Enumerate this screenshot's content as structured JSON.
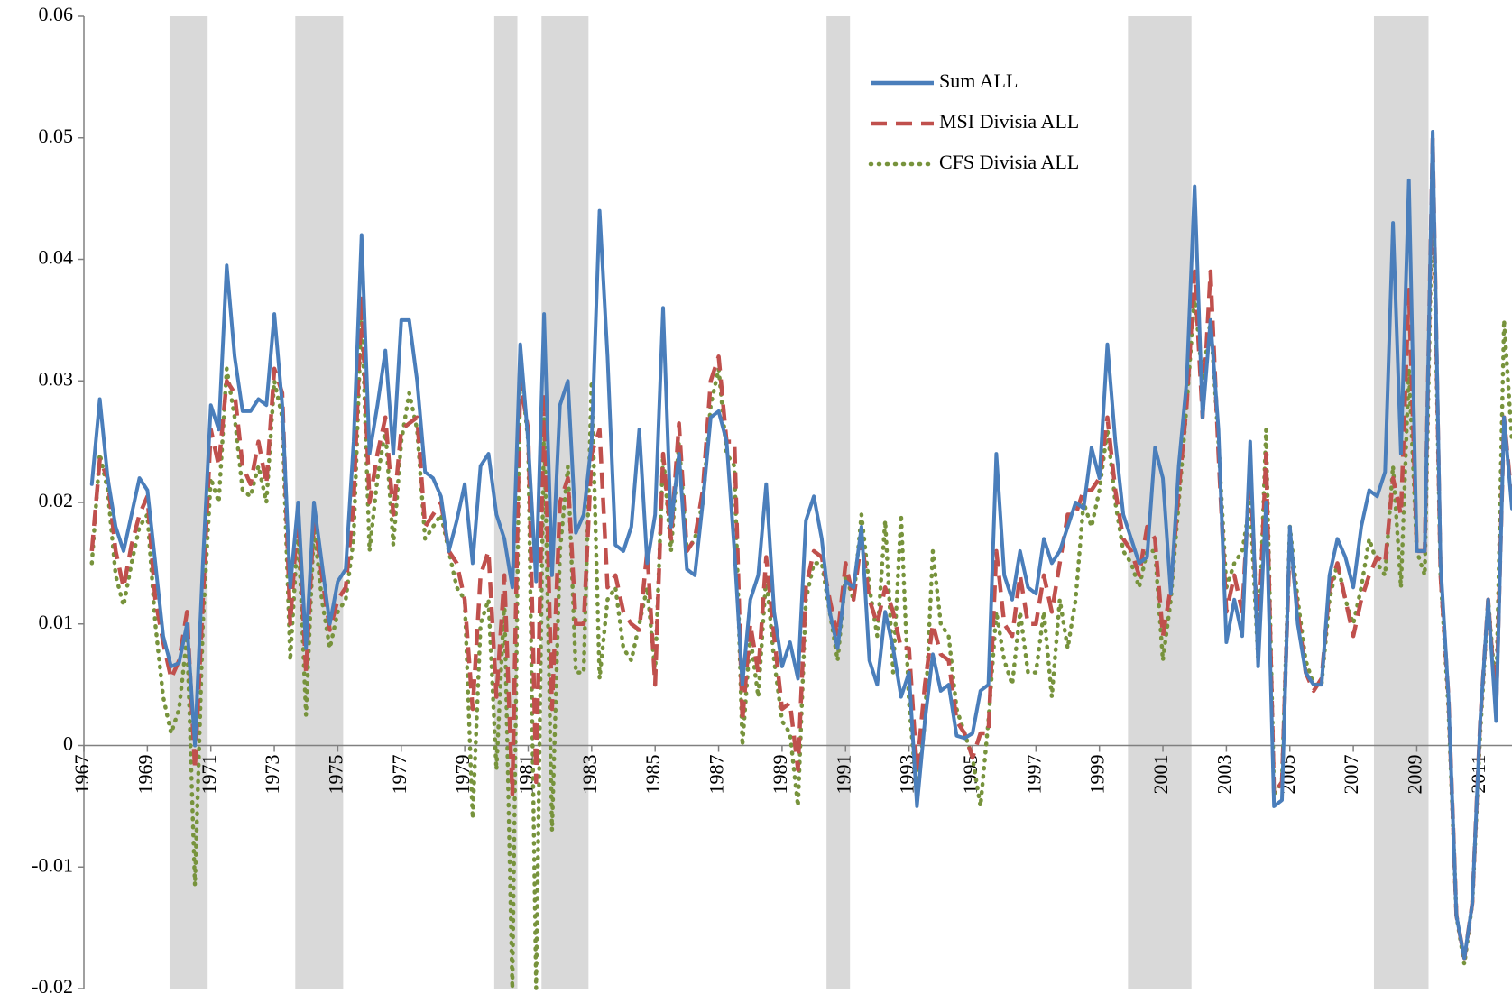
{
  "chart_data": {
    "type": "line",
    "x": [
      1967.25,
      1967.5,
      1967.75,
      1968,
      1968.25,
      1968.5,
      1968.75,
      1969,
      1969.25,
      1969.5,
      1969.75,
      1970,
      1970.25,
      1970.5,
      1970.75,
      1971,
      1971.25,
      1971.5,
      1971.75,
      1972,
      1972.25,
      1972.5,
      1972.75,
      1973,
      1973.25,
      1973.5,
      1973.75,
      1974,
      1974.25,
      1974.5,
      1974.75,
      1975,
      1975.25,
      1975.5,
      1975.75,
      1976,
      1976.25,
      1976.5,
      1976.75,
      1977,
      1977.25,
      1977.5,
      1977.75,
      1978,
      1978.25,
      1978.5,
      1978.75,
      1979,
      1979.25,
      1979.5,
      1979.75,
      1980,
      1980.25,
      1980.5,
      1980.75,
      1981,
      1981.25,
      1981.5,
      1981.75,
      1982,
      1982.25,
      1982.5,
      1982.75,
      1983,
      1983.25,
      1983.5,
      1983.75,
      1984,
      1984.25,
      1984.5,
      1984.75,
      1985,
      1985.25,
      1985.5,
      1985.75,
      1986,
      1986.25,
      1986.5,
      1986.75,
      1987,
      1987.25,
      1987.5,
      1987.75,
      1988,
      1988.25,
      1988.5,
      1988.75,
      1989,
      1989.25,
      1989.5,
      1989.75,
      1990,
      1990.25,
      1990.5,
      1990.75,
      1991,
      1991.25,
      1991.5,
      1991.75,
      1992,
      1992.25,
      1992.5,
      1992.75,
      1993,
      1993.25,
      1993.5,
      1993.75,
      1994,
      1994.25,
      1994.5,
      1994.75,
      1995,
      1995.25,
      1995.5,
      1995.75,
      1996,
      1996.25,
      1996.5,
      1996.75,
      1997,
      1997.25,
      1997.5,
      1997.75,
      1998,
      1998.25,
      1998.5,
      1998.75,
      1999,
      1999.25,
      1999.5,
      1999.75,
      2000,
      2000.25,
      2000.5,
      2000.75,
      2001,
      2001.25,
      2001.5,
      2001.75,
      2002,
      2002.25,
      2002.5,
      2002.75,
      2003,
      2003.25,
      2003.5,
      2003.75,
      2004,
      2004.25,
      2004.5,
      2004.75,
      2005,
      2005.25,
      2005.5,
      2005.75,
      2006,
      2006.25,
      2006.5,
      2006.75,
      2007,
      2007.25,
      2007.5,
      2007.75,
      2008,
      2008.25,
      2008.5,
      2008.75,
      2009,
      2009.25,
      2009.5,
      2009.75,
      2010,
      2010.25,
      2010.5,
      2010.75,
      2011,
      2011.25,
      2011.5,
      2011.75,
      2012
    ],
    "series": [
      {
        "name": "Sum ALL",
        "color": "#4a7ebb",
        "style": "solid",
        "values": [
          0.0215,
          0.0285,
          0.022,
          0.018,
          0.016,
          0.019,
          0.022,
          0.021,
          0.015,
          0.009,
          0.0065,
          0.0068,
          0.01,
          0.0,
          0.015,
          0.028,
          0.026,
          0.0395,
          0.032,
          0.0275,
          0.0275,
          0.0285,
          0.028,
          0.0355,
          0.028,
          0.013,
          0.02,
          0.008,
          0.02,
          0.015,
          0.01,
          0.0135,
          0.0145,
          0.025,
          0.042,
          0.024,
          0.028,
          0.0325,
          0.024,
          0.035,
          0.035,
          0.03,
          0.0225,
          0.022,
          0.0205,
          0.016,
          0.0185,
          0.0215,
          0.015,
          0.023,
          0.024,
          0.019,
          0.017,
          0.013,
          0.033,
          0.025,
          0.0135,
          0.0355,
          0.014,
          0.028,
          0.03,
          0.0175,
          0.019,
          0.025,
          0.044,
          0.032,
          0.0165,
          0.016,
          0.018,
          0.026,
          0.015,
          0.019,
          0.036,
          0.018,
          0.024,
          0.0145,
          0.014,
          0.02,
          0.027,
          0.0275,
          0.025,
          0.016,
          0.005,
          0.012,
          0.014,
          0.0215,
          0.011,
          0.0065,
          0.0085,
          0.0055,
          0.0185,
          0.0205,
          0.017,
          0.011,
          0.008,
          0.0135,
          0.013,
          0.018,
          0.007,
          0.005,
          0.011,
          0.008,
          0.004,
          0.006,
          -0.005,
          0.002,
          0.0075,
          0.0045,
          0.005,
          0.0008,
          0.0006,
          0.001,
          0.0045,
          0.005,
          0.024,
          0.014,
          0.012,
          0.016,
          0.013,
          0.0125,
          0.017,
          0.015,
          0.016,
          0.018,
          0.02,
          0.0195,
          0.0245,
          0.022,
          0.033,
          0.025,
          0.019,
          0.017,
          0.015,
          0.0155,
          0.0245,
          0.022,
          0.0125,
          0.023,
          0.03,
          0.046,
          0.027,
          0.035,
          0.026,
          0.0085,
          0.012,
          0.009,
          0.025,
          0.0065,
          0.02,
          -0.005,
          -0.0045,
          0.018,
          0.01,
          0.006,
          0.005,
          0.005,
          0.014,
          0.017,
          0.0155,
          0.013,
          0.018,
          0.021,
          0.0205,
          0.0225,
          0.043,
          0.024,
          0.0465,
          0.016,
          0.016,
          0.0505,
          0.015,
          0.004,
          -0.014,
          -0.0175,
          -0.013,
          0.002,
          0.012,
          0.002,
          0.027,
          0.0195
        ]
      },
      {
        "name": "MSI Divisia ALL",
        "color": "#c0504d",
        "style": "dashed",
        "values": [
          0.016,
          0.0235,
          0.022,
          0.016,
          0.013,
          0.0165,
          0.019,
          0.0205,
          0.012,
          0.0085,
          0.0055,
          0.007,
          0.011,
          -0.002,
          0.012,
          0.026,
          0.023,
          0.03,
          0.029,
          0.023,
          0.0215,
          0.025,
          0.0215,
          0.031,
          0.029,
          0.01,
          0.0195,
          0.006,
          0.019,
          0.014,
          0.0095,
          0.012,
          0.013,
          0.02,
          0.037,
          0.02,
          0.024,
          0.027,
          0.019,
          0.026,
          0.0265,
          0.027,
          0.018,
          0.019,
          0.02,
          0.016,
          0.015,
          0.012,
          0.003,
          0.014,
          0.016,
          0.004,
          0.014,
          -0.004,
          0.03,
          0.026,
          -0.003,
          0.029,
          0.003,
          0.02,
          0.022,
          0.01,
          0.01,
          0.024,
          0.026,
          0.013,
          0.014,
          0.011,
          0.01,
          0.0095,
          0.016,
          0.005,
          0.024,
          0.017,
          0.0265,
          0.016,
          0.017,
          0.021,
          0.03,
          0.032,
          0.025,
          0.025,
          0.002,
          0.01,
          0.006,
          0.0155,
          0.009,
          0.003,
          0.0035,
          -0.002,
          0.013,
          0.016,
          0.0155,
          0.012,
          0.009,
          0.015,
          0.012,
          0.017,
          0.012,
          0.01,
          0.013,
          0.011,
          0.008,
          0.008,
          -0.002,
          0.005,
          0.01,
          0.0075,
          0.007,
          0.002,
          0.001,
          -0.001,
          0.001,
          0.001,
          0.016,
          0.01,
          0.009,
          0.014,
          0.01,
          0.01,
          0.014,
          0.011,
          0.015,
          0.019,
          0.019,
          0.021,
          0.021,
          0.022,
          0.027,
          0.021,
          0.017,
          0.016,
          0.014,
          0.018,
          0.017,
          0.009,
          0.013,
          0.021,
          0.028,
          0.039,
          0.027,
          0.039,
          0.024,
          0.011,
          0.014,
          0.011,
          0.023,
          0.008,
          0.024,
          -0.004,
          -0.003,
          0.017,
          0.011,
          0.006,
          0.0045,
          0.0055,
          0.013,
          0.015,
          0.012,
          0.009,
          0.012,
          0.014,
          0.0155,
          0.015,
          0.022,
          0.019,
          0.0375,
          0.016,
          0.016,
          0.05,
          0.014,
          0.004,
          -0.014,
          -0.0175,
          -0.013,
          0.002,
          0.012,
          0.003,
          0.027,
          0.02
        ]
      },
      {
        "name": "CFS Divisia ALL",
        "color": "#77933c",
        "style": "dotted",
        "values": [
          0.015,
          0.024,
          0.021,
          0.014,
          0.0115,
          0.015,
          0.018,
          0.019,
          0.01,
          0.004,
          0.001,
          0.003,
          0.009,
          -0.0115,
          0.01,
          0.022,
          0.02,
          0.031,
          0.027,
          0.021,
          0.0205,
          0.023,
          0.02,
          0.03,
          0.027,
          0.007,
          0.018,
          0.0025,
          0.018,
          0.012,
          0.008,
          0.011,
          0.012,
          0.017,
          0.036,
          0.016,
          0.022,
          0.026,
          0.0165,
          0.025,
          0.029,
          0.026,
          0.017,
          0.018,
          0.019,
          0.016,
          0.013,
          0.012,
          -0.006,
          0.01,
          0.012,
          -0.002,
          0.012,
          -0.02,
          0.0315,
          0.025,
          -0.02,
          0.027,
          -0.007,
          0.016,
          0.023,
          0.006,
          0.006,
          0.03,
          0.0055,
          0.012,
          0.013,
          0.008,
          0.007,
          0.01,
          0.013,
          0.006,
          0.024,
          0.016,
          0.025,
          0.016,
          0.017,
          0.02,
          0.028,
          0.031,
          0.024,
          0.023,
          0.0,
          0.009,
          0.004,
          0.014,
          0.007,
          0.002,
          0.001,
          -0.005,
          0.012,
          0.015,
          0.015,
          0.011,
          0.007,
          0.014,
          0.012,
          0.019,
          0.013,
          0.009,
          0.0185,
          0.006,
          0.019,
          0.0035,
          -0.004,
          0.002,
          0.016,
          0.01,
          0.009,
          0.003,
          0.001,
          -0.001,
          -0.005,
          0.002,
          0.011,
          0.007,
          0.005,
          0.011,
          0.006,
          0.006,
          0.011,
          0.004,
          0.012,
          0.008,
          0.012,
          0.02,
          0.018,
          0.021,
          0.026,
          0.02,
          0.016,
          0.015,
          0.013,
          0.016,
          0.016,
          0.007,
          0.012,
          0.02,
          0.028,
          0.037,
          0.03,
          0.035,
          0.025,
          0.013,
          0.015,
          0.016,
          0.02,
          0.007,
          0.026,
          -0.004,
          -0.003,
          0.018,
          0.012,
          0.007,
          0.005,
          0.005,
          0.012,
          0.015,
          0.012,
          0.01,
          0.013,
          0.017,
          0.015,
          0.014,
          0.023,
          0.013,
          0.031,
          0.016,
          0.014,
          0.047,
          0.014,
          0.003,
          -0.014,
          -0.018,
          -0.013,
          0.001,
          0.012,
          0.004,
          0.035,
          0.025
        ]
      }
    ],
    "shaded_periods": [
      [
        1969.7,
        1970.9
      ],
      [
        1973.66,
        1975.17
      ],
      [
        1979.93,
        1980.66
      ],
      [
        1981.42,
        1982.9
      ],
      [
        1990.4,
        1991.14
      ],
      [
        1999.9,
        2001.9
      ],
      [
        2007.65,
        2009.37
      ]
    ],
    "xlim": [
      1967,
      2012
    ],
    "ylim": [
      -0.02,
      0.06
    ],
    "xticks": [
      1967,
      1969,
      1971,
      1973,
      1975,
      1977,
      1979,
      1981,
      1983,
      1985,
      1987,
      1989,
      1991,
      1993,
      1995,
      1997,
      1999,
      2001,
      2003,
      2005,
      2007,
      2009,
      2011
    ],
    "yticks": [
      -0.02,
      -0.01,
      0,
      0.01,
      0.02,
      0.03,
      0.04,
      0.05,
      0.06
    ],
    "grid": false,
    "legend": "upper center"
  }
}
